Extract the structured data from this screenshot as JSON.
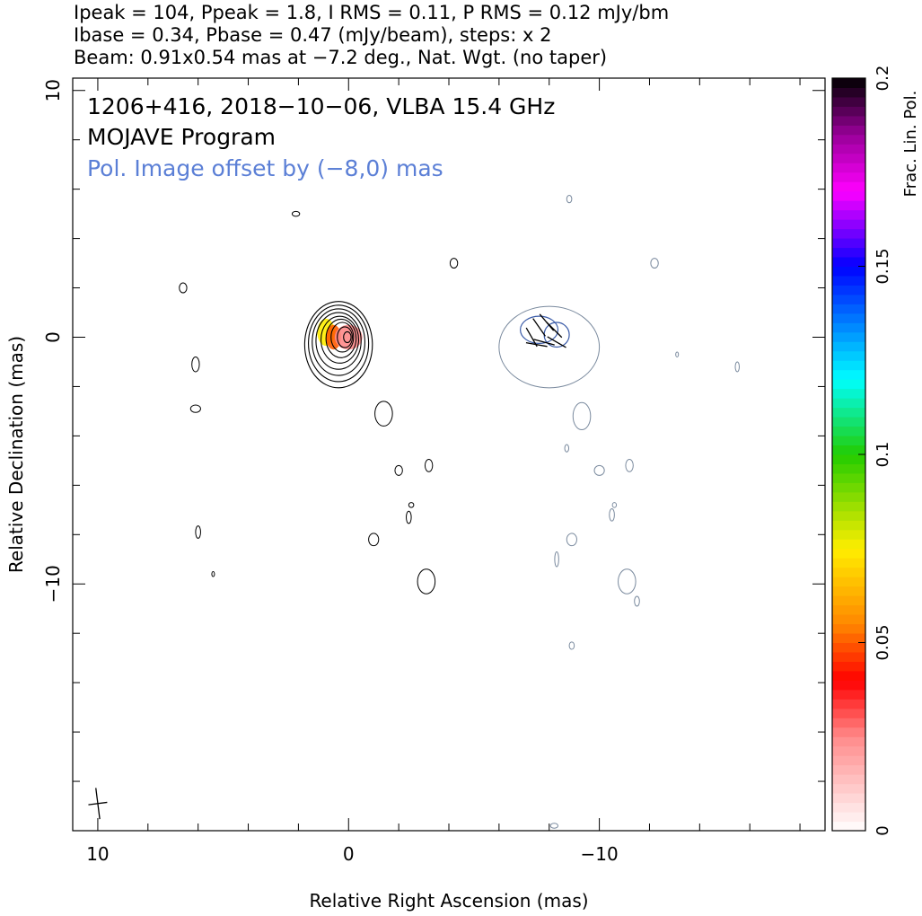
{
  "header": {
    "line1": "Ipeak = 104, Ppeak = 1.8, I RMS = 0.11, P RMS = 0.12 mJy/bm",
    "line2": "Ibase = 0.34, Pbase = 0.47 (mJy/beam), steps: x 2",
    "line3": "Beam: 0.91x0.54 mas at −7.2 deg., Nat. Wgt. (no taper)"
  },
  "annotations": {
    "title": "1206+416, 2018−10−06, VLBA 15.4 GHz",
    "program": "MOJAVE Program",
    "offset_note": "Pol. Image offset by (−8,0) mas"
  },
  "colors": {
    "stokes_i_contour": "#000000",
    "pol_contour": "#7a8a9e",
    "pol_inner_contour": "#3a5ba8",
    "offset_note_text": "#5b7fd6"
  },
  "chart_data": {
    "type": "contour",
    "title": "1206+416, 2018−10−06, VLBA 15.4 GHz",
    "xlabel": "Relative Right Ascension (mas)",
    "ylabel": "Relative Declination (mas)",
    "xlim": [
      11,
      -19
    ],
    "ylim": [
      -20,
      10.5
    ],
    "x_ticks": [
      10,
      0,
      -10
    ],
    "x_tick_labels": [
      "10",
      "0",
      "−10"
    ],
    "y_ticks": [
      10,
      0,
      -10
    ],
    "y_tick_labels": [
      "10",
      "0",
      "−10"
    ],
    "colorbar": {
      "label": "Frac. Lin. Pol.",
      "range": [
        0,
        0.2
      ],
      "ticks": [
        0,
        0.05,
        0.1,
        0.15,
        0.2
      ],
      "tick_labels": [
        "0",
        "0.05",
        "0.1",
        "0.15",
        "0.2"
      ],
      "stops": [
        {
          "v": 0.0,
          "color": "#ffffff"
        },
        {
          "v": 0.025,
          "color": "#ff8a8a"
        },
        {
          "v": 0.04,
          "color": "#ff0000"
        },
        {
          "v": 0.055,
          "color": "#ff8800"
        },
        {
          "v": 0.075,
          "color": "#ffee00"
        },
        {
          "v": 0.1,
          "color": "#22cc00"
        },
        {
          "v": 0.12,
          "color": "#00ffff"
        },
        {
          "v": 0.15,
          "color": "#0000ff"
        },
        {
          "v": 0.17,
          "color": "#ff00ff"
        },
        {
          "v": 0.185,
          "color": "#990099"
        },
        {
          "v": 0.2,
          "color": "#000000"
        }
      ]
    },
    "stokes_i_core": {
      "center": [
        0.4,
        -0.2
      ],
      "levels": [
        {
          "rx": 1.35,
          "ry": 1.75,
          "cx": 0.4,
          "cy": -0.3
        },
        {
          "rx": 1.2,
          "ry": 1.55,
          "cx": 0.4,
          "cy": -0.25
        },
        {
          "rx": 1.05,
          "ry": 1.35,
          "cx": 0.4,
          "cy": -0.2
        },
        {
          "rx": 0.9,
          "ry": 1.15,
          "cx": 0.4,
          "cy": -0.15
        },
        {
          "rx": 0.75,
          "ry": 0.95,
          "cx": 0.35,
          "cy": -0.1
        },
        {
          "rx": 0.6,
          "ry": 0.78,
          "cx": 0.3,
          "cy": -0.05
        },
        {
          "rx": 0.45,
          "ry": 0.6,
          "cx": 0.25,
          "cy": 0.0
        },
        {
          "rx": 0.3,
          "ry": 0.42,
          "cx": 0.15,
          "cy": 0.0
        },
        {
          "rx": 0.15,
          "ry": 0.22,
          "cx": 0.05,
          "cy": 0.0
        }
      ]
    },
    "frac_pol_patches": [
      {
        "x": 0.9,
        "y": 0.2,
        "rx": 0.35,
        "ry": 0.55,
        "value": 0.075
      },
      {
        "x": 0.6,
        "y": 0.0,
        "rx": 0.3,
        "ry": 0.5,
        "value": 0.05
      },
      {
        "x": 0.0,
        "y": 0.0,
        "rx": 0.55,
        "ry": 0.5,
        "value": 0.025
      }
    ],
    "pol_intensity_offset": {
      "center": [
        -7.9,
        0.0
      ],
      "outer": {
        "cx": -8.0,
        "cy": -0.4,
        "rx": 2.0,
        "ry": 1.65
      },
      "inner": [
        {
          "cx": -7.6,
          "cy": 0.3,
          "rx": 0.75,
          "ry": 0.55
        },
        {
          "cx": -8.3,
          "cy": 0.1,
          "rx": 0.5,
          "ry": 0.5
        }
      ],
      "evpa_vectors": [
        {
          "x": -7.3,
          "y": 0.0,
          "angle": 30
        },
        {
          "x": -7.6,
          "y": 0.4,
          "angle": 35
        },
        {
          "x": -7.9,
          "y": 0.6,
          "angle": 40
        },
        {
          "x": -8.2,
          "y": 0.3,
          "angle": 45
        },
        {
          "x": -8.3,
          "y": -0.2,
          "angle": 60
        },
        {
          "x": -7.8,
          "y": -0.2,
          "angle": 75
        },
        {
          "x": -7.5,
          "y": -0.3,
          "angle": 80
        }
      ]
    },
    "stokes_i_noise_blobs": [
      {
        "x": 6.6,
        "y": 2.0,
        "rx": 0.15,
        "ry": 0.2
      },
      {
        "x": 2.1,
        "y": 5.0,
        "rx": 0.15,
        "ry": 0.1
      },
      {
        "x": -4.2,
        "y": 3.0,
        "rx": 0.15,
        "ry": 0.2
      },
      {
        "x": 6.1,
        "y": -1.1,
        "rx": 0.15,
        "ry": 0.3
      },
      {
        "x": 6.1,
        "y": -2.9,
        "rx": 0.2,
        "ry": 0.15
      },
      {
        "x": -1.4,
        "y": -3.1,
        "rx": 0.35,
        "ry": 0.5
      },
      {
        "x": -2.0,
        "y": -5.4,
        "rx": 0.15,
        "ry": 0.2
      },
      {
        "x": -3.2,
        "y": -5.2,
        "rx": 0.15,
        "ry": 0.25
      },
      {
        "x": -2.5,
        "y": -6.8,
        "rx": 0.1,
        "ry": 0.1
      },
      {
        "x": -2.4,
        "y": -7.3,
        "rx": 0.1,
        "ry": 0.25
      },
      {
        "x": -1.0,
        "y": -8.2,
        "rx": 0.2,
        "ry": 0.25
      },
      {
        "x": 6.0,
        "y": -7.9,
        "rx": 0.1,
        "ry": 0.25
      },
      {
        "x": 5.4,
        "y": -9.6,
        "rx": 0.05,
        "ry": 0.1
      },
      {
        "x": -3.1,
        "y": -9.9,
        "rx": 0.35,
        "ry": 0.5
      }
    ],
    "pol_noise_blobs": [
      {
        "x": -8.8,
        "y": 5.6,
        "rx": 0.1,
        "ry": 0.15
      },
      {
        "x": -12.2,
        "y": 3.0,
        "rx": 0.15,
        "ry": 0.2
      },
      {
        "x": -13.1,
        "y": -0.7,
        "rx": 0.05,
        "ry": 0.1
      },
      {
        "x": -15.5,
        "y": -1.2,
        "rx": 0.08,
        "ry": 0.2
      },
      {
        "x": -9.3,
        "y": -3.2,
        "rx": 0.35,
        "ry": 0.55
      },
      {
        "x": -8.7,
        "y": -4.5,
        "rx": 0.08,
        "ry": 0.15
      },
      {
        "x": -10.0,
        "y": -5.4,
        "rx": 0.2,
        "ry": 0.2
      },
      {
        "x": -11.2,
        "y": -5.2,
        "rx": 0.15,
        "ry": 0.25
      },
      {
        "x": -10.6,
        "y": -6.8,
        "rx": 0.08,
        "ry": 0.1
      },
      {
        "x": -10.5,
        "y": -7.2,
        "rx": 0.1,
        "ry": 0.25
      },
      {
        "x": -8.9,
        "y": -8.2,
        "rx": 0.2,
        "ry": 0.25
      },
      {
        "x": -8.3,
        "y": -9.0,
        "rx": 0.08,
        "ry": 0.3
      },
      {
        "x": -11.1,
        "y": -9.9,
        "rx": 0.35,
        "ry": 0.5
      },
      {
        "x": -11.5,
        "y": -10.7,
        "rx": 0.1,
        "ry": 0.2
      },
      {
        "x": -8.9,
        "y": -12.5,
        "rx": 0.1,
        "ry": 0.15
      },
      {
        "x": -8.2,
        "y": -19.8,
        "rx": 0.15,
        "ry": 0.1
      }
    ],
    "beam": {
      "x": 10.0,
      "y": -18.9,
      "major": 0.91,
      "minor": 0.54,
      "pa_deg": -7.2
    }
  }
}
